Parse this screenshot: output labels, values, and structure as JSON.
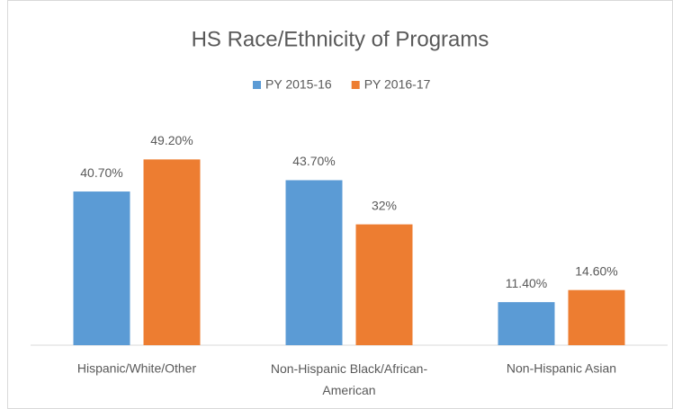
{
  "chart_data": {
    "type": "bar",
    "title": "HS Race/Ethnicity of Programs",
    "categories": [
      "Hispanic/White/Other",
      "Non-Hispanic Black/African-American",
      "Non-Hispanic Asian"
    ],
    "series": [
      {
        "name": "PY 2015-16",
        "color": "#5b9bd5",
        "values": [
          40.7,
          43.7,
          11.4
        ],
        "value_labels": [
          "40.70%",
          "43.70%",
          "11.40%"
        ]
      },
      {
        "name": "PY 2016-17",
        "color": "#ed7d31",
        "values": [
          49.2,
          32,
          14.6
        ],
        "value_labels": [
          "49.20%",
          "32%",
          "14.60%"
        ]
      }
    ],
    "ylim": [
      0,
      60
    ],
    "legend": "top"
  }
}
